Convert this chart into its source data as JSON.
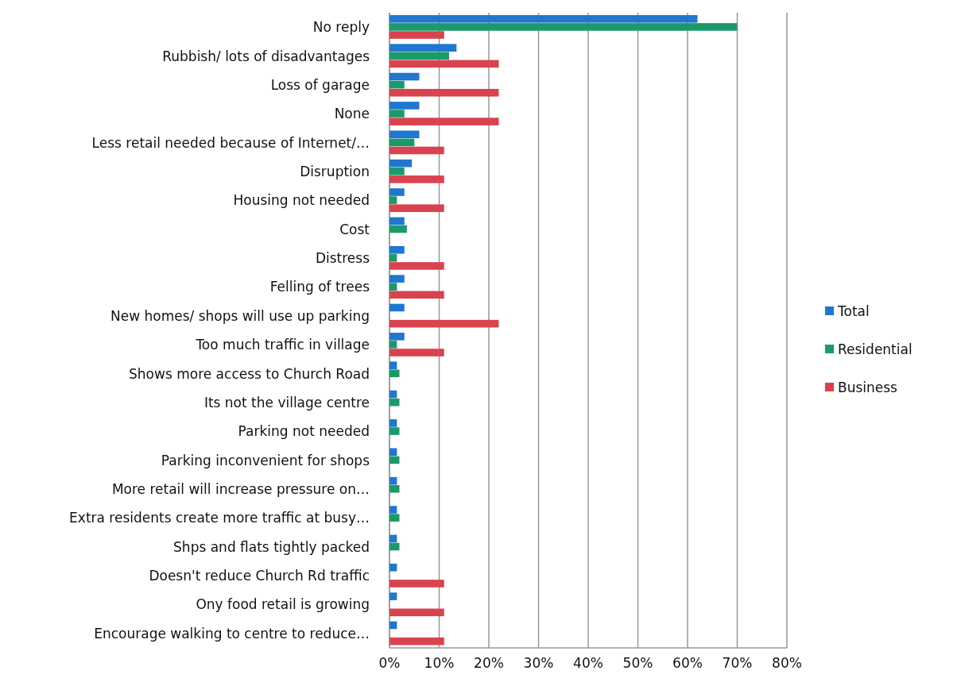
{
  "chart_data": {
    "type": "bar",
    "orientation": "horizontal",
    "categories": [
      "No reply",
      "Rubbish/ lots of disadvantages",
      "Loss of garage",
      "None",
      "Less retail needed because of Internet/…",
      "Disruption",
      "Housing not needed",
      "Cost",
      "Distress",
      "Felling of trees",
      "New homes/ shops will use up parking",
      "Too much traffic in village",
      "Shows more access to Church Road",
      "Its not the village centre",
      "Parking not needed",
      "Parking inconvenient for shops",
      "More retail will increase pressure on…",
      "Extra residents create more traffic at busy…",
      "Shps and flats tightly packed",
      "Doesn't reduce Church Rd traffic",
      "Ony food retail is growing",
      "Encourage walking to centre to reduce…"
    ],
    "series": [
      {
        "name": "Total",
        "color": "#1f77d0",
        "values": [
          62,
          13.5,
          6,
          6,
          6,
          4.5,
          3,
          3,
          3,
          3,
          3,
          3,
          1.5,
          1.5,
          1.5,
          1.5,
          1.5,
          1.5,
          1.5,
          1.5,
          1.5,
          1.5
        ]
      },
      {
        "name": "Residential",
        "color": "#1a9a6a",
        "values": [
          70,
          12,
          3,
          3,
          5,
          3,
          1.5,
          3.5,
          1.5,
          1.5,
          0,
          1.5,
          2,
          2,
          2,
          2,
          2,
          2,
          2,
          0,
          0,
          0
        ]
      },
      {
        "name": "Business",
        "color": "#d9434f",
        "values": [
          11,
          22,
          22,
          22,
          11,
          11,
          11,
          0,
          11,
          11,
          22,
          11,
          0,
          0,
          0,
          0,
          0,
          0,
          0,
          11,
          11,
          11
        ]
      }
    ],
    "xlim": [
      0,
      80
    ],
    "xticks": [
      {
        "value": 0,
        "label": "0%"
      },
      {
        "value": 10,
        "label": "10%"
      },
      {
        "value": 20,
        "label": "20%"
      },
      {
        "value": 30,
        "label": "30%"
      },
      {
        "value": 40,
        "label": "40%"
      },
      {
        "value": 50,
        "label": "50%"
      },
      {
        "value": 60,
        "label": "60%"
      },
      {
        "value": 70,
        "label": "70%"
      },
      {
        "value": 80,
        "label": "80%"
      }
    ],
    "grid": "x",
    "legend": "right"
  }
}
